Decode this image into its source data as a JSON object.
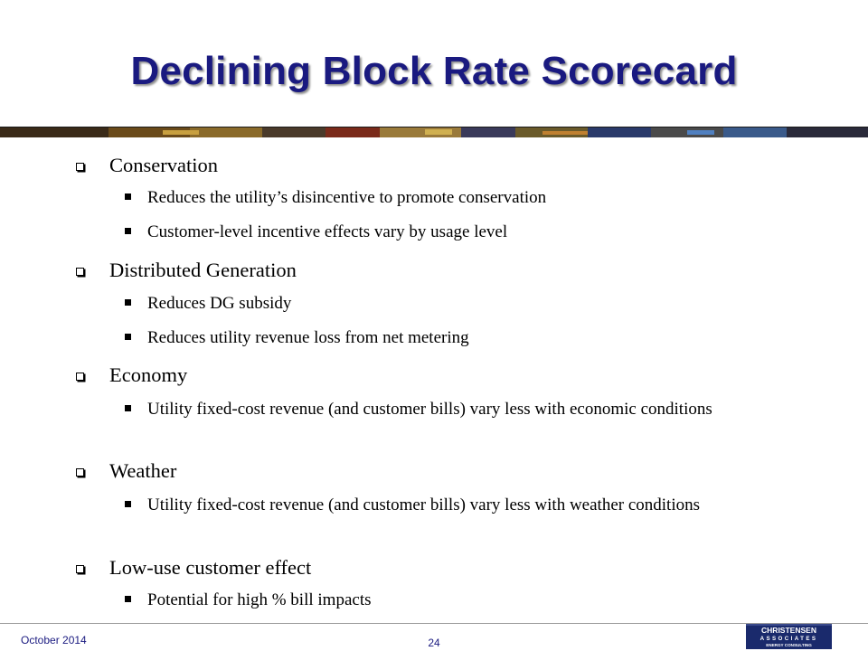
{
  "slide": {
    "title": "Declining Block Rate Scorecard",
    "sections": [
      {
        "heading": "Conservation",
        "items": [
          "Reduces the utility’s disincentive to promote conservation",
          "Customer-level incentive effects vary by usage level"
        ]
      },
      {
        "heading": "Distributed Generation",
        "items": [
          "Reduces DG subsidy",
          "Reduces utility revenue loss from net metering"
        ]
      },
      {
        "heading": "Economy",
        "items": [
          "Utility fixed-cost revenue (and customer bills) vary less with economic conditions"
        ]
      },
      {
        "heading": "Weather",
        "items": [
          "Utility fixed-cost revenue (and customer bills) vary less with weather conditions"
        ]
      },
      {
        "heading": "Low-use customer effect",
        "items": [
          "Potential for high % bill impacts"
        ]
      }
    ]
  },
  "footer": {
    "date": "October 2014",
    "page": "24",
    "logo": {
      "line1": "CHRISTENSEN",
      "line2": "ASSOCIATES",
      "line3": "ENERGY CONSULTING"
    }
  },
  "colors": {
    "title": "#1a1a80",
    "logo_bg": "#1a2a6c",
    "banner_dark": "#1a1a1a"
  }
}
